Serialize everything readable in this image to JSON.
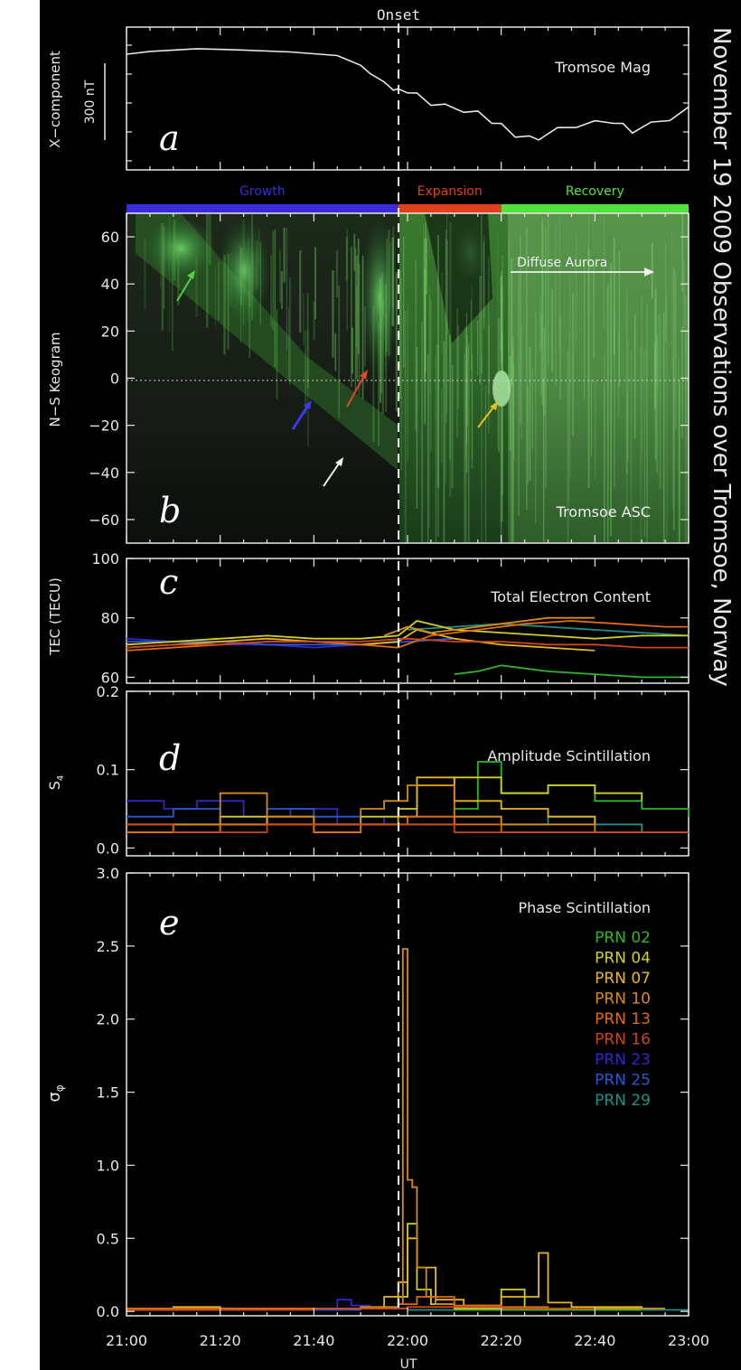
{
  "figure": {
    "title": "November 19 2009 Observations over Tromsoe, Norway",
    "onset_label": "Onset",
    "onset_time": "21:58",
    "x_label": "UT",
    "x_range": [
      "21:00",
      "23:00"
    ],
    "x_ticks": [
      "21:00",
      "21:20",
      "21:40",
      "22:00",
      "22:20",
      "22:40",
      "23:00"
    ],
    "phases": [
      {
        "name": "Growth",
        "start": "21:00",
        "end": "21:58",
        "color": "#3a2bd8"
      },
      {
        "name": "Expansion",
        "start": "21:58",
        "end": "22:20",
        "color": "#e0401c"
      },
      {
        "name": "Recovery",
        "start": "22:20",
        "end": "23:00",
        "color": "#52e23c"
      }
    ],
    "prn_colors": {
      "02": "#3326c8",
      "04": "#2a58d4",
      "07": "#1f8f86",
      "10": "#2fb52a",
      "13": "#d2cf2a",
      "16": "#e6b724",
      "23": "#d58c16",
      "25": "#dd6b10",
      "29": "#c9471a"
    }
  },
  "panels": {
    "a": {
      "letter": "a",
      "title": "Tromsoe Mag",
      "ylabel": "X−component",
      "scale_label": "300 nT"
    },
    "b": {
      "letter": "b",
      "title": "Tromsoe ASC",
      "ylabel": "N−S Keogram",
      "annotation": "Diffuse Aurora",
      "y_ticks": [
        "60",
        "40",
        "20",
        "0",
        "−20",
        "−40",
        "−60"
      ]
    },
    "c": {
      "letter": "c",
      "title": "Total Electron Content",
      "ylabel": "TEC (TECU)",
      "y_ticks": [
        "100",
        "80",
        "60"
      ]
    },
    "d": {
      "letter": "d",
      "title": "Amplitude Scintillation",
      "ylabel": "S4",
      "y_ticks": [
        "0.2",
        "0.1",
        "0.0"
      ]
    },
    "e": {
      "letter": "e",
      "title": "Phase Scintillation",
      "ylabel": "σφ",
      "y_ticks": [
        "3.0",
        "2.5",
        "2.0",
        "1.5",
        "1.0",
        "0.5",
        "0.0"
      ],
      "legend": [
        "PRN  02",
        "PRN  04",
        "PRN  07",
        "PRN  10",
        "PRN  13",
        "PRN  16",
        "PRN  23",
        "PRN  25",
        "PRN  29"
      ]
    }
  },
  "chart_data": [
    {
      "panel": "a",
      "type": "line",
      "title": "Tromsoe Mag",
      "ylabel": "X-component",
      "xlabel": "",
      "x_range_minutes": [
        0,
        120
      ],
      "scale_bar": "300 nT",
      "series": [
        {
          "color": "#e8e8e8",
          "x": [
            0,
            5,
            15,
            25,
            35,
            45,
            50,
            52,
            55,
            57,
            58,
            60,
            62,
            65,
            68,
            72,
            75,
            78,
            80,
            83,
            86,
            88,
            92,
            96,
            100,
            104,
            106,
            108,
            112,
            116,
            120
          ],
          "y_nT_rel": [
            0,
            10,
            20,
            15,
            8,
            -5,
            -40,
            -70,
            -100,
            -120,
            -135,
            -130,
            -150,
            -175,
            -190,
            -200,
            -215,
            -240,
            -260,
            -290,
            -305,
            -300,
            -275,
            -255,
            -250,
            -240,
            -260,
            -275,
            -255,
            -230,
            -200
          ]
        }
      ]
    },
    {
      "panel": "b",
      "type": "heatmap",
      "title": "Tromsoe ASC",
      "ylabel": "N-S Keogram",
      "ylim": [
        -70,
        70
      ],
      "y_ticks": [
        60,
        40,
        20,
        0,
        -20,
        -40,
        -60
      ],
      "annotation": "Diffuse Aurora"
    },
    {
      "panel": "c",
      "type": "line",
      "title": "Total Electron Content",
      "ylabel": "TEC (TECU)",
      "ylim": [
        58,
        100
      ],
      "y_ticks": [
        60,
        80,
        100
      ],
      "series": [
        {
          "name": "PRN 02",
          "color": "#3326c8",
          "x": [
            0,
            10,
            20,
            30,
            40,
            50,
            58
          ],
          "y": [
            73,
            72,
            71,
            71,
            70,
            71,
            72
          ]
        },
        {
          "name": "PRN 04",
          "color": "#2a58d4",
          "x": [
            0,
            10,
            20,
            30,
            40,
            50,
            60,
            70
          ],
          "y": [
            72,
            72,
            72,
            71,
            71,
            71,
            72,
            73
          ]
        },
        {
          "name": "PRN 07",
          "color": "#1f8f86",
          "x": [
            60,
            70,
            80,
            90,
            100,
            110,
            120
          ],
          "y": [
            76,
            77,
            78,
            77,
            76,
            75,
            74
          ]
        },
        {
          "name": "PRN 10",
          "color": "#2fb52a",
          "x": [
            70,
            75,
            80,
            90,
            100,
            110,
            120
          ],
          "y": [
            61,
            62,
            64,
            62,
            61,
            60,
            60
          ]
        },
        {
          "name": "PRN 13",
          "color": "#d2cf2a",
          "x": [
            0,
            10,
            20,
            30,
            40,
            50,
            58,
            62,
            70,
            80,
            90,
            100,
            110,
            120
          ],
          "y": [
            71,
            72,
            73,
            74,
            73,
            73,
            74,
            79,
            76,
            75,
            74,
            73,
            74,
            74
          ]
        },
        {
          "name": "PRN 16",
          "color": "#e6b724",
          "x": [
            0,
            10,
            20,
            30,
            40,
            50,
            58,
            62,
            70,
            80,
            90,
            100
          ],
          "y": [
            70,
            71,
            72,
            73,
            72,
            71,
            72,
            76,
            73,
            71,
            70,
            69
          ]
        },
        {
          "name": "PRN 23",
          "color": "#d58c16",
          "x": [
            55,
            60,
            65,
            70,
            80,
            90,
            100
          ],
          "y": [
            74,
            77,
            75,
            76,
            78,
            80,
            80
          ]
        },
        {
          "name": "PRN 25",
          "color": "#dd6b10",
          "x": [
            0,
            10,
            20,
            30,
            40,
            50,
            58,
            65,
            75,
            85,
            95,
            105,
            115,
            120
          ],
          "y": [
            69,
            70,
            71,
            72,
            72,
            71,
            70,
            74,
            76,
            78,
            79,
            78,
            77,
            77
          ]
        },
        {
          "name": "PRN 29",
          "color": "#c9471a",
          "x": [
            0,
            10,
            20,
            30,
            40,
            50,
            60,
            70,
            80,
            90,
            100,
            110,
            120
          ],
          "y": [
            70,
            71,
            71,
            72,
            72,
            72,
            73,
            72,
            72,
            71,
            71,
            70,
            70
          ]
        }
      ]
    },
    {
      "panel": "d",
      "type": "line",
      "title": "Amplitude Scintillation",
      "ylabel": "S4",
      "ylim": [
        0,
        0.2
      ],
      "y_ticks": [
        0.0,
        0.1,
        0.2
      ],
      "series": [
        {
          "name": "PRN 02",
          "color": "#3326c8",
          "x": [
            0,
            8,
            15,
            25,
            35,
            45,
            55,
            60
          ],
          "y": [
            0.06,
            0.05,
            0.06,
            0.04,
            0.05,
            0.03,
            0.04,
            0.04
          ]
        },
        {
          "name": "PRN 04",
          "color": "#2a58d4",
          "x": [
            0,
            10,
            20,
            30,
            40,
            50,
            60,
            70
          ],
          "y": [
            0.04,
            0.05,
            0.03,
            0.05,
            0.04,
            0.03,
            0.04,
            0.03
          ]
        },
        {
          "name": "PRN 07",
          "color": "#1f8f86",
          "x": [
            60,
            70,
            80,
            90,
            100,
            110,
            120
          ],
          "y": [
            0.03,
            0.04,
            0.03,
            0.04,
            0.03,
            0.02,
            0.02
          ]
        },
        {
          "name": "PRN 10",
          "color": "#2fb52a",
          "x": [
            70,
            75,
            80,
            90,
            100,
            110,
            120
          ],
          "y": [
            0.05,
            0.11,
            0.07,
            0.08,
            0.06,
            0.05,
            0.04
          ]
        },
        {
          "name": "PRN 13",
          "color": "#d2cf2a",
          "x": [
            0,
            10,
            20,
            30,
            40,
            50,
            58,
            62,
            70,
            80,
            90,
            100,
            110
          ],
          "y": [
            0.02,
            0.03,
            0.04,
            0.03,
            0.03,
            0.04,
            0.05,
            0.08,
            0.09,
            0.07,
            0.08,
            0.07,
            0.06
          ]
        },
        {
          "name": "PRN 16",
          "color": "#e6b724",
          "x": [
            0,
            10,
            20,
            30,
            40,
            50,
            58,
            62,
            70,
            80,
            90,
            100
          ],
          "y": [
            0.03,
            0.02,
            0.03,
            0.04,
            0.02,
            0.03,
            0.04,
            0.09,
            0.06,
            0.05,
            0.04,
            0.03
          ]
        },
        {
          "name": "PRN 23",
          "color": "#d58c16",
          "x": [
            0,
            10,
            20,
            30,
            40,
            50,
            55,
            60,
            70,
            80,
            90,
            100,
            110,
            120
          ],
          "y": [
            0.02,
            0.03,
            0.07,
            0.04,
            0.03,
            0.05,
            0.06,
            0.08,
            0.04,
            0.03,
            0.03,
            0.02,
            0.02,
            0.02
          ]
        },
        {
          "name": "PRN 25",
          "color": "#dd6b10",
          "x": [
            0,
            10,
            20,
            30,
            40,
            50,
            60,
            70,
            80,
            90,
            100,
            110,
            120
          ],
          "y": [
            0.02,
            0.02,
            0.03,
            0.03,
            0.02,
            0.03,
            0.04,
            0.03,
            0.02,
            0.02,
            0.02,
            0.02,
            0.02
          ]
        },
        {
          "name": "PRN 29",
          "color": "#c9471a",
          "x": [
            0,
            10,
            20,
            30,
            40,
            50,
            60,
            70,
            80,
            90,
            100,
            110,
            120
          ],
          "y": [
            0.03,
            0.02,
            0.02,
            0.03,
            0.03,
            0.03,
            0.03,
            0.02,
            0.02,
            0.02,
            0.02,
            0.02,
            0.02
          ]
        }
      ]
    },
    {
      "panel": "e",
      "type": "line",
      "title": "Phase Scintillation",
      "ylabel": "sigma-phi",
      "ylim": [
        0,
        3.0
      ],
      "y_ticks": [
        0.0,
        0.5,
        1.0,
        1.5,
        2.0,
        2.5,
        3.0
      ],
      "series": [
        {
          "name": "PRN 02",
          "color": "#3326c8",
          "x": [
            0,
            10,
            20,
            30,
            40,
            45,
            48,
            52,
            58
          ],
          "y": [
            0.02,
            0.01,
            0.02,
            0.01,
            0.02,
            0.08,
            0.04,
            0.02,
            0.02
          ]
        },
        {
          "name": "PRN 04",
          "color": "#2a58d4",
          "x": [
            0,
            10,
            20,
            30,
            40,
            50,
            60
          ],
          "y": [
            0.01,
            0.02,
            0.01,
            0.02,
            0.01,
            0.02,
            0.01
          ]
        },
        {
          "name": "PRN 07",
          "color": "#1f8f86",
          "x": [
            60,
            80,
            100,
            120
          ],
          "y": [
            0.01,
            0.01,
            0.01,
            0.01
          ]
        },
        {
          "name": "PRN 10",
          "color": "#2fb52a",
          "x": [
            70,
            90,
            110
          ],
          "y": [
            0.01,
            0.01,
            0.01
          ]
        },
        {
          "name": "PRN 13",
          "color": "#d2cf2a",
          "x": [
            0,
            20,
            40,
            58,
            60,
            62,
            65,
            70,
            80,
            85,
            100,
            110
          ],
          "y": [
            0.01,
            0.02,
            0.02,
            0.1,
            0.6,
            0.15,
            0.05,
            0.02,
            0.15,
            0.02,
            0.02,
            0.02
          ]
        },
        {
          "name": "PRN 16",
          "color": "#e6b724",
          "x": [
            0,
            10,
            20,
            40,
            55,
            58,
            60,
            62,
            66,
            72,
            80,
            88,
            90,
            95,
            110
          ],
          "y": [
            0.02,
            0.03,
            0.02,
            0.02,
            0.1,
            0.2,
            0.5,
            0.3,
            0.08,
            0.04,
            0.1,
            0.4,
            0.06,
            0.03,
            0.02
          ]
        },
        {
          "name": "PRN 23",
          "color": "#d58c16",
          "x": [
            0,
            20,
            50,
            58,
            59,
            60,
            61,
            62,
            64,
            66,
            70,
            80,
            90,
            100,
            115
          ],
          "y": [
            0.02,
            0.02,
            0.03,
            0.05,
            2.48,
            0.9,
            0.85,
            0.3,
            0.1,
            0.05,
            0.03,
            0.02,
            0.02,
            0.02,
            0.02
          ]
        },
        {
          "name": "PRN 25",
          "color": "#dd6b10",
          "x": [
            0,
            20,
            40,
            58,
            62,
            70,
            80,
            90,
            100
          ],
          "y": [
            0.02,
            0.02,
            0.02,
            0.05,
            0.1,
            0.04,
            0.03,
            0.02,
            0.02
          ]
        },
        {
          "name": "PRN 29",
          "color": "#c9471a",
          "x": [
            0,
            20,
            40,
            60,
            80,
            100
          ],
          "y": [
            0.01,
            0.01,
            0.02,
            0.03,
            0.02,
            0.01
          ]
        }
      ]
    }
  ]
}
